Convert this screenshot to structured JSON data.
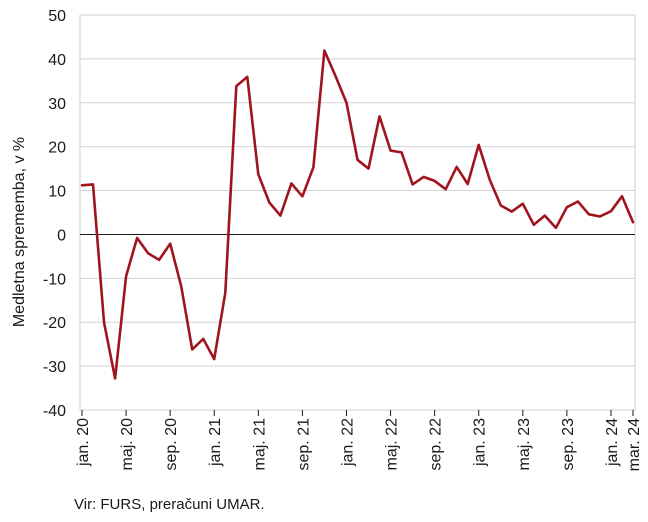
{
  "chart_data": {
    "type": "line",
    "title": "",
    "ylabel": "Medletna sprememba, v %",
    "xlabel": "",
    "ylim": [
      -40,
      50
    ],
    "yticks": [
      50,
      40,
      30,
      20,
      10,
      0,
      -10,
      -20,
      -30,
      -40
    ],
    "grid": true,
    "x_tick_labels": [
      "jan. 20",
      "maj. 20",
      "sep. 20",
      "jan. 21",
      "maj. 21",
      "sep. 21",
      "jan. 22",
      "maj. 22",
      "sep. 22",
      "jan. 23",
      "maj. 23",
      "sep. 23",
      "jan. 24",
      "mar. 24"
    ],
    "x_tick_index": [
      0,
      4,
      8,
      12,
      16,
      20,
      24,
      28,
      32,
      36,
      40,
      44,
      48,
      50
    ],
    "series": [
      {
        "color": "#a0141e",
        "x": [
          "jan. 20",
          "feb. 20",
          "mar. 20",
          "apr. 20",
          "maj. 20",
          "jun. 20",
          "jul. 20",
          "avg. 20",
          "sep. 20",
          "okt. 20",
          "nov. 20",
          "dec. 20",
          "jan. 21",
          "feb. 21",
          "mar. 21",
          "apr. 21",
          "maj. 21",
          "jun. 21",
          "jul. 21",
          "avg. 21",
          "sep. 21",
          "okt. 21",
          "nov. 21",
          "dec. 21",
          "jan. 22",
          "feb. 22",
          "mar. 22",
          "apr. 22",
          "maj. 22",
          "jun. 22",
          "jul. 22",
          "avg. 22",
          "sep. 22",
          "okt. 22",
          "nov. 22",
          "dec. 22",
          "jan. 23",
          "feb. 23",
          "mar. 23",
          "apr. 23",
          "maj. 23",
          "jun. 23",
          "jul. 23",
          "avg. 23",
          "sep. 23",
          "okt. 23",
          "nov. 23",
          "dec. 23",
          "jan. 24",
          "feb. 24",
          "mar. 24"
        ],
        "values": [
          11.2,
          11.4,
          -20.0,
          -32.8,
          -9.5,
          -0.8,
          -4.3,
          -5.8,
          -2.1,
          -11.8,
          -26.2,
          -23.8,
          -28.4,
          -13.3,
          33.8,
          35.9,
          13.7,
          7.3,
          4.3,
          11.6,
          8.7,
          15.3,
          41.9,
          36.1,
          30.0,
          17.0,
          15.0,
          26.9,
          19.1,
          18.7,
          11.4,
          13.1,
          12.2,
          10.3,
          15.4,
          11.5,
          20.4,
          12.5,
          6.6,
          5.2,
          7.0,
          2.2,
          4.3,
          1.5,
          6.2,
          7.5,
          4.6,
          4.1,
          5.3,
          8.7,
          2.8
        ]
      }
    ]
  },
  "source_text": "Vir: FURS, preračuni UMAR."
}
